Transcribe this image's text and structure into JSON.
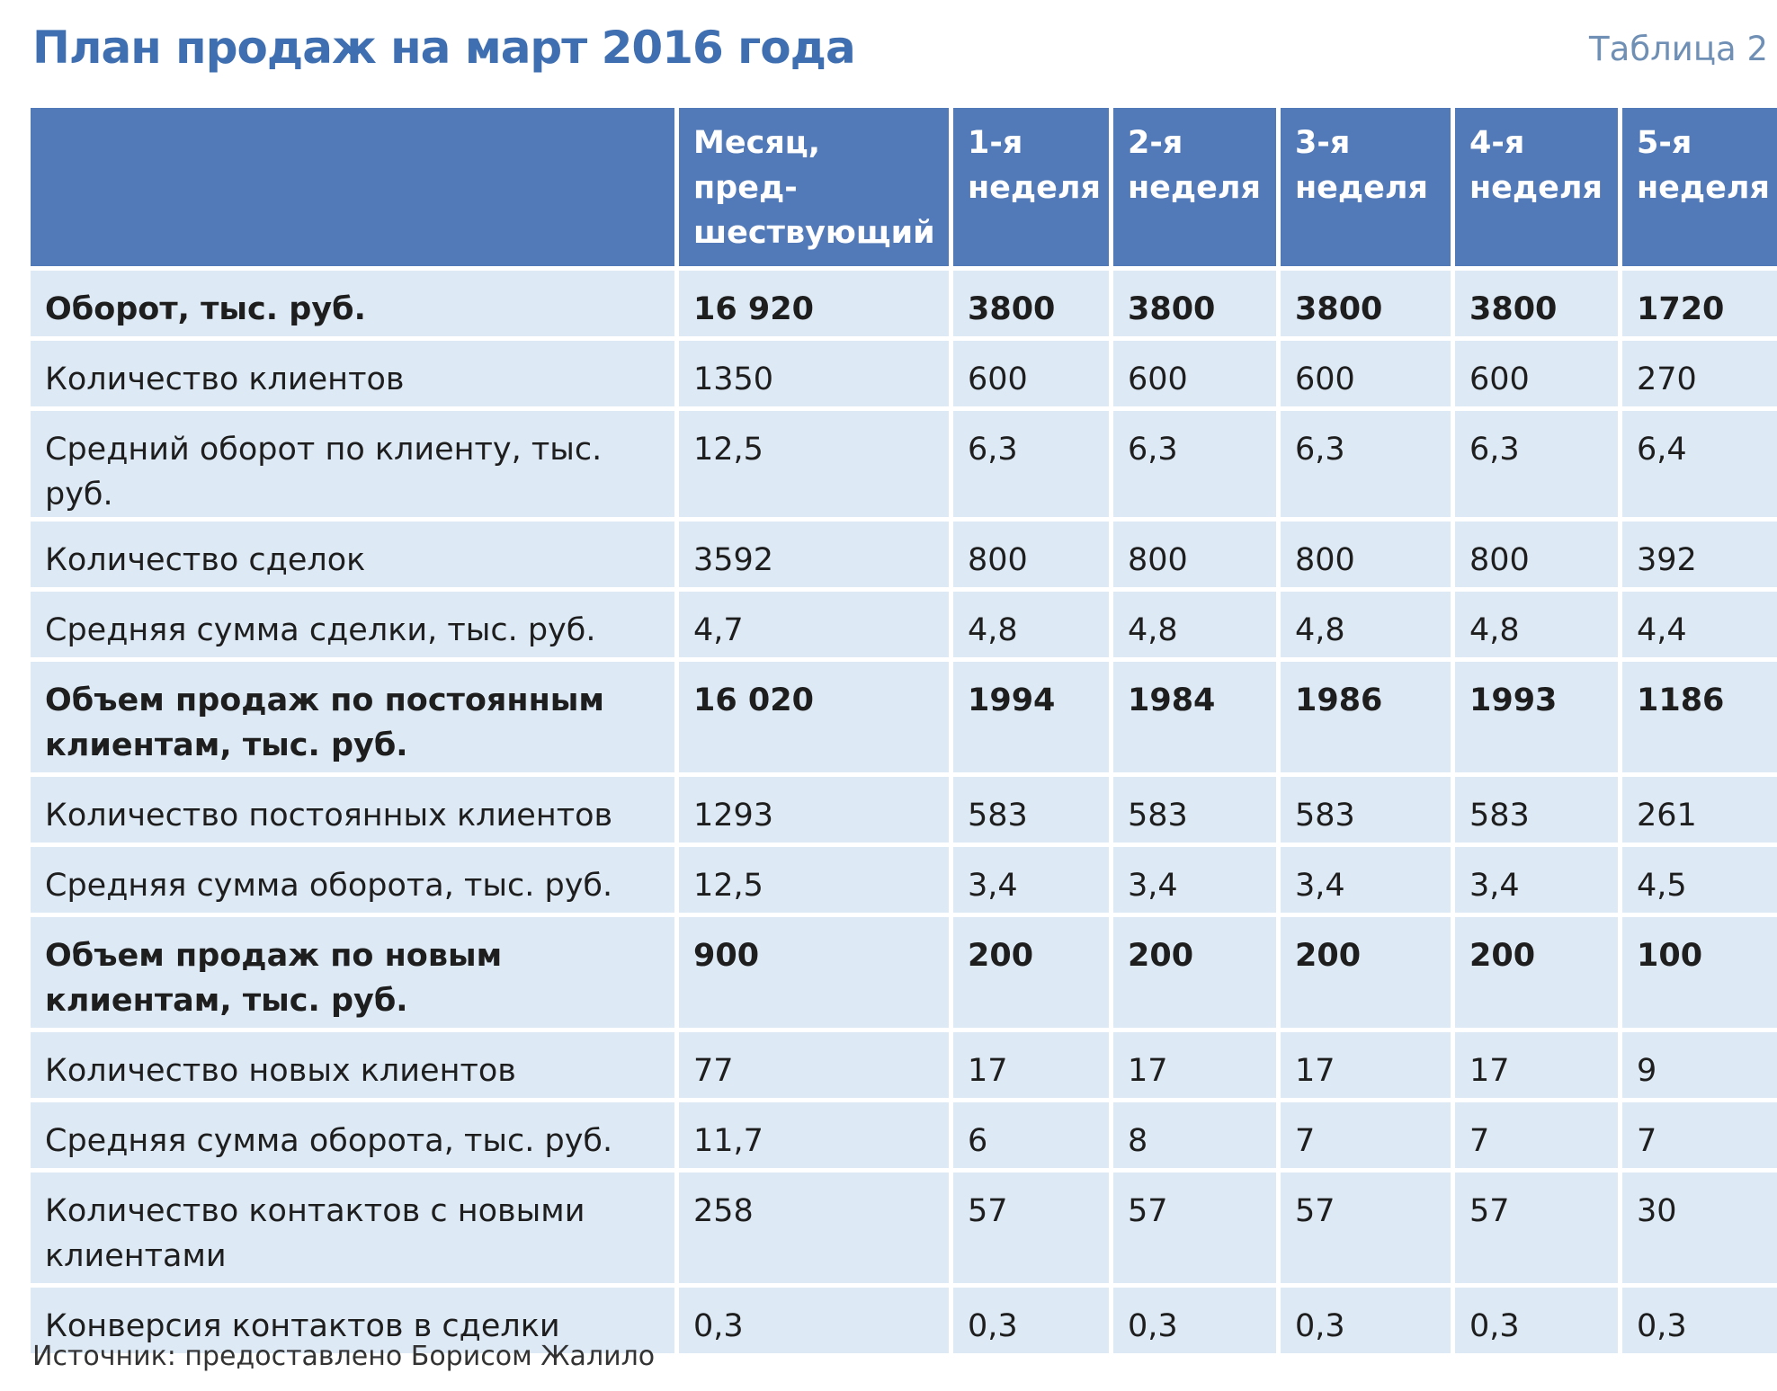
{
  "title": "План продаж на март 2016 года",
  "table_label": "Таблица 2",
  "headers": [
    "",
    "Месяц, пред-\nшествующий\nплановому",
    "1-я\nнеделя",
    "2-я\nнеделя",
    "3-я\nнеделя",
    "4-я\nнеделя",
    "5-я\nнеделя"
  ],
  "rows": [
    {
      "label": "Оборот, тыс. руб.",
      "values": [
        "16 920",
        "3800",
        "3800",
        "3800",
        "3800",
        "1720"
      ]
    },
    {
      "label": "Количество клиентов",
      "values": [
        "1350",
        "600",
        "600",
        "600",
        "600",
        "270"
      ]
    },
    {
      "label": "Средний оборот по клиенту, тыс. руб.",
      "values": [
        "12,5",
        "6,3",
        "6,3",
        "6,3",
        "6,3",
        "6,4"
      ]
    },
    {
      "label": "Количество сделок",
      "values": [
        "3592",
        "800",
        "800",
        "800",
        "800",
        "392"
      ]
    },
    {
      "label": "Средняя сумма сделки, тыс. руб.",
      "values": [
        "4,7",
        "4,8",
        "4,8",
        "4,8",
        "4,8",
        "4,4"
      ]
    },
    {
      "label": "Объем продаж по постоянным клиентам, тыс. руб.",
      "values": [
        "16 020",
        "1994",
        "1984",
        "1986",
        "1993",
        "1186"
      ]
    },
    {
      "label": "Количество постоянных клиентов",
      "values": [
        "1293",
        "583",
        "583",
        "583",
        "583",
        "261"
      ]
    },
    {
      "label": "Средняя сумма оборота, тыс. руб.",
      "values": [
        "12,5",
        "3,4",
        "3,4",
        "3,4",
        "3,4",
        "4,5"
      ]
    },
    {
      "label": "Объем продаж по новым клиентам, тыс. руб.",
      "values": [
        "900",
        "200",
        "200",
        "200",
        "200",
        "100"
      ]
    },
    {
      "label": "Количество новых клиентов",
      "values": [
        "77",
        "17",
        "17",
        "17",
        "17",
        "9"
      ]
    },
    {
      "label": "Средняя сумма оборота, тыс. руб.",
      "values": [
        "11,7",
        "6",
        "8",
        "7",
        "7",
        "7"
      ]
    },
    {
      "label": "Количество контактов с новыми клиентами",
      "values": [
        "258",
        "57",
        "57",
        "57",
        "57",
        "30"
      ]
    },
    {
      "label": "Конверсия контактов в сделки",
      "values": [
        "0,3",
        "0,3",
        "0,3",
        "0,3",
        "0,3",
        "0,3"
      ]
    }
  ],
  "source": "Источник: предоставлено Борисом Жалило"
}
